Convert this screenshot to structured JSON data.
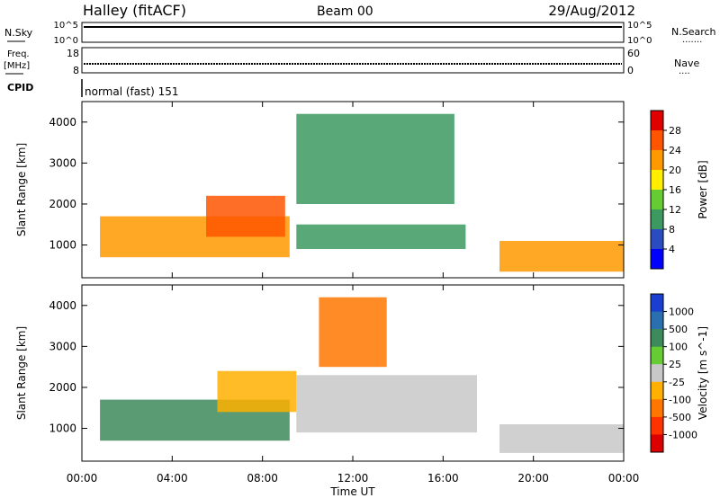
{
  "header": {
    "title": "Halley (fitACF)",
    "beam": "Beam 00",
    "date": "29/Aug/2012"
  },
  "strip_noise": {
    "left_label": "N.Sky",
    "left_ticks": [
      "10^5",
      "10^0"
    ],
    "right_ticks": [
      "10^5",
      "10^0"
    ],
    "right_label": "N.Search",
    "right_marker": "·······"
  },
  "strip_freq": {
    "left_label_1": "Freq.",
    "left_label_2": "[MHz]",
    "left_ticks": [
      "18",
      "8"
    ],
    "right_ticks": [
      "60",
      "0"
    ],
    "right_label": "Nave",
    "right_marker": "····"
  },
  "cpid": {
    "label": "CPID",
    "value": "normal (fast) 151"
  },
  "colors": {
    "power_scale": [
      "#0000ff",
      "#2a4cc0",
      "#3c9a60",
      "#66cc33",
      "#ffee00",
      "#ff9900",
      "#ff5500",
      "#e00000"
    ],
    "velocity_scale": [
      "#1a3fd0",
      "#2a6fb0",
      "#3d8a5a",
      "#66cc33",
      "#c8c8c8",
      "#ffb000",
      "#ff7700",
      "#ff3300",
      "#dd0000"
    ],
    "frame": "#000000"
  },
  "chart_data": [
    {
      "type": "heatmap",
      "title": "",
      "xlabel": "Time UT",
      "ylabel": "Slant Range [km]",
      "x_ticks": [
        "00:00",
        "04:00",
        "08:00",
        "12:00",
        "16:00",
        "20:00",
        "00:00"
      ],
      "y_ticks": [
        1000,
        2000,
        3000,
        4000
      ],
      "xlim_hours": [
        0,
        24
      ],
      "ylim_km": [
        200,
        4500
      ],
      "colorbar": {
        "label": "Power [dB]",
        "ticks": [
          4,
          8,
          12,
          16,
          20,
          24,
          28
        ]
      },
      "regions": [
        {
          "t": [
            0.8,
            9.2
          ],
          "r": [
            700,
            1700
          ],
          "value_db": 20
        },
        {
          "t": [
            5.5,
            9.0
          ],
          "r": [
            1200,
            2200
          ],
          "value_db": 24
        },
        {
          "t": [
            9.5,
            16.5
          ],
          "r": [
            2000,
            4200
          ],
          "value_db": 8
        },
        {
          "t": [
            9.5,
            17.0
          ],
          "r": [
            900,
            1500
          ],
          "value_db": 8
        },
        {
          "t": [
            18.5,
            24.0
          ],
          "r": [
            350,
            1100
          ],
          "value_db": 22
        }
      ]
    },
    {
      "type": "heatmap",
      "title": "",
      "xlabel": "Time UT",
      "ylabel": "Slant Range [km]",
      "x_ticks": [
        "00:00",
        "04:00",
        "08:00",
        "12:00",
        "16:00",
        "20:00",
        "00:00"
      ],
      "y_ticks": [
        1000,
        2000,
        3000,
        4000
      ],
      "xlim_hours": [
        0,
        24
      ],
      "ylim_km": [
        200,
        4500
      ],
      "colorbar": {
        "label": "Velocity [m s^-1]",
        "ticks": [
          1000,
          500,
          100,
          25,
          -25,
          -100,
          -500,
          -1000
        ]
      },
      "regions": [
        {
          "t": [
            0.8,
            9.2
          ],
          "r": [
            700,
            1700
          ],
          "value_ms": 100
        },
        {
          "t": [
            6.0,
            9.5
          ],
          "r": [
            1400,
            2400
          ],
          "value_ms": -100
        },
        {
          "t": [
            10.5,
            13.5
          ],
          "r": [
            2500,
            4200
          ],
          "value_ms": -500
        },
        {
          "t": [
            9.5,
            17.5
          ],
          "r": [
            900,
            2300
          ],
          "value_ms": 0
        },
        {
          "t": [
            18.5,
            24.0
          ],
          "r": [
            400,
            1100
          ],
          "value_ms": 0
        }
      ]
    }
  ]
}
